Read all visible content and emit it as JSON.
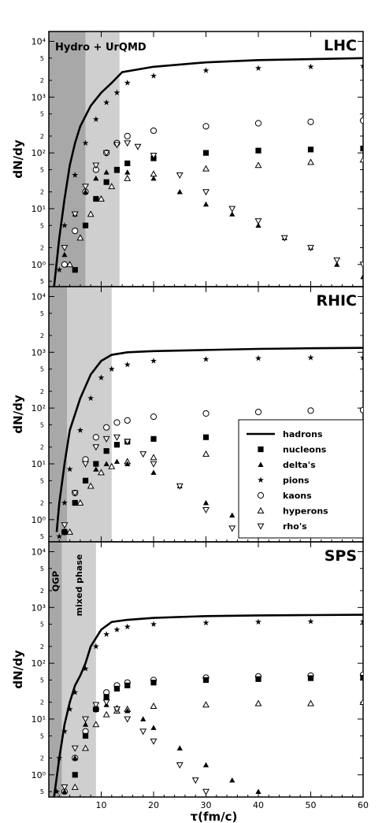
{
  "chart_data": {
    "type": "scatter",
    "x_label": "τ(fm/c)",
    "y_label": "dN/dy",
    "x_ticks": [
      "10",
      "20",
      "30",
      "40",
      "50",
      "60"
    ],
    "y_ticks": [
      "10⁰",
      "10¹",
      "10²",
      "10³",
      "10⁴"
    ],
    "y_minor_ticks": [
      "5",
      "2",
      "5",
      "2",
      "5",
      "2",
      "5",
      "2",
      "5"
    ],
    "xlim": [
      0,
      60
    ],
    "ylim": [
      0.4,
      15000
    ],
    "y_scale": "log",
    "legend": {
      "placement": "inside RHIC panel, right",
      "entries": [
        {
          "name": "hadrons",
          "marker": "line"
        },
        {
          "name": "nucleons",
          "marker": "square"
        },
        {
          "name": "delta's",
          "marker": "triangle"
        },
        {
          "name": "pions",
          "marker": "star"
        },
        {
          "name": "kaons",
          "marker": "circle-open"
        },
        {
          "name": "hyperons",
          "marker": "triangle-open"
        },
        {
          "name": "rho's",
          "marker": "triangle-down-open"
        }
      ]
    },
    "panels": [
      {
        "title": "LHC",
        "dark_shade_to": 7,
        "light_shade_to": 13.5,
        "shade_label": "Hydro + UrQMD",
        "series": {
          "hadrons": [
            [
              1,
              0.4
            ],
            [
              2,
              3
            ],
            [
              3,
              15
            ],
            [
              4,
              60
            ],
            [
              5,
              150
            ],
            [
              6,
              300
            ],
            [
              8,
              700
            ],
            [
              10,
              1200
            ],
            [
              12,
              1800
            ],
            [
              14,
              2800
            ],
            [
              20,
              3500
            ],
            [
              30,
              4200
            ],
            [
              40,
              4600
            ],
            [
              50,
              4800
            ],
            [
              60,
              5000
            ]
          ],
          "pions": [
            [
              2,
              0.8
            ],
            [
              3,
              5
            ],
            [
              5,
              40
            ],
            [
              7,
              150
            ],
            [
              9,
              400
            ],
            [
              11,
              800
            ],
            [
              13,
              1200
            ],
            [
              15,
              1800
            ],
            [
              20,
              2400
            ],
            [
              30,
              3000
            ],
            [
              40,
              3300
            ],
            [
              50,
              3500
            ],
            [
              60,
              3600
            ]
          ],
          "kaons": [
            [
              3,
              1
            ],
            [
              5,
              4
            ],
            [
              7,
              20
            ],
            [
              9,
              50
            ],
            [
              11,
              100
            ],
            [
              13,
              150
            ],
            [
              15,
              200
            ],
            [
              20,
              250
            ],
            [
              30,
              300
            ],
            [
              40,
              340
            ],
            [
              50,
              360
            ],
            [
              60,
              380
            ]
          ],
          "nucleons": [
            [
              5,
              0.8
            ],
            [
              7,
              5
            ],
            [
              9,
              15
            ],
            [
              11,
              30
            ],
            [
              13,
              50
            ],
            [
              15,
              65
            ],
            [
              20,
              80
            ],
            [
              30,
              100
            ],
            [
              40,
              110
            ],
            [
              50,
              115
            ],
            [
              60,
              120
            ]
          ],
          "hyperons": [
            [
              4,
              1
            ],
            [
              6,
              3
            ],
            [
              8,
              8
            ],
            [
              10,
              15
            ],
            [
              12,
              25
            ],
            [
              15,
              35
            ],
            [
              20,
              42
            ],
            [
              30,
              52
            ],
            [
              40,
              60
            ],
            [
              50,
              68
            ],
            [
              60,
              75
            ]
          ],
          "deltas": [
            [
              3,
              1.5
            ],
            [
              5,
              8
            ],
            [
              7,
              20
            ],
            [
              9,
              35
            ],
            [
              11,
              45
            ],
            [
              13,
              48
            ],
            [
              15,
              45
            ],
            [
              20,
              35
            ],
            [
              25,
              20
            ],
            [
              30,
              12
            ],
            [
              35,
              8
            ],
            [
              40,
              5
            ],
            [
              45,
              3
            ],
            [
              50,
              2
            ],
            [
              55,
              1
            ],
            [
              60,
              0.6
            ]
          ],
          "rhos": [
            [
              3,
              2
            ],
            [
              5,
              8
            ],
            [
              7,
              25
            ],
            [
              9,
              60
            ],
            [
              11,
              100
            ],
            [
              13,
              140
            ],
            [
              15,
              150
            ],
            [
              17,
              130
            ],
            [
              20,
              90
            ],
            [
              25,
              40
            ],
            [
              30,
              20
            ],
            [
              35,
              10
            ],
            [
              40,
              6
            ],
            [
              45,
              3
            ],
            [
              50,
              2
            ],
            [
              55,
              1.2
            ],
            [
              60,
              1
            ]
          ]
        }
      },
      {
        "title": "RHIC",
        "dark_shade_to": 3.5,
        "light_shade_to": 12,
        "series": {
          "hadrons": [
            [
              1.5,
              0.6
            ],
            [
              2,
              2
            ],
            [
              3,
              10
            ],
            [
              4,
              40
            ],
            [
              6,
              150
            ],
            [
              8,
              400
            ],
            [
              10,
              700
            ],
            [
              12,
              900
            ],
            [
              15,
              1000
            ],
            [
              20,
              1050
            ],
            [
              30,
              1100
            ],
            [
              40,
              1150
            ],
            [
              50,
              1180
            ],
            [
              60,
              1200
            ]
          ],
          "pions": [
            [
              2,
              0.5
            ],
            [
              3,
              2
            ],
            [
              4,
              8
            ],
            [
              6,
              40
            ],
            [
              8,
              150
            ],
            [
              10,
              350
            ],
            [
              12,
              500
            ],
            [
              15,
              600
            ],
            [
              20,
              700
            ],
            [
              30,
              750
            ],
            [
              40,
              780
            ],
            [
              50,
              800
            ],
            [
              60,
              800
            ]
          ],
          "kaons": [
            [
              3,
              0.6
            ],
            [
              5,
              3
            ],
            [
              7,
              12
            ],
            [
              9,
              30
            ],
            [
              11,
              45
            ],
            [
              13,
              55
            ],
            [
              15,
              60
            ],
            [
              20,
              70
            ],
            [
              30,
              80
            ],
            [
              40,
              85
            ],
            [
              50,
              90
            ],
            [
              60,
              92
            ]
          ],
          "nucleons": [
            [
              3,
              0.6
            ],
            [
              5,
              2
            ],
            [
              7,
              5
            ],
            [
              9,
              10
            ],
            [
              11,
              17
            ],
            [
              13,
              22
            ],
            [
              15,
              25
            ],
            [
              20,
              28
            ],
            [
              30,
              30
            ],
            [
              40,
              32
            ],
            [
              50,
              33
            ],
            [
              60,
              34
            ]
          ],
          "hyperons": [
            [
              4,
              0.6
            ],
            [
              6,
              2
            ],
            [
              8,
              4
            ],
            [
              10,
              7
            ],
            [
              12,
              9
            ],
            [
              15,
              11
            ],
            [
              20,
              13
            ],
            [
              30,
              15
            ],
            [
              40,
              16
            ],
            [
              50,
              17
            ],
            [
              60,
              18
            ]
          ],
          "deltas": [
            [
              3,
              0.6
            ],
            [
              5,
              2
            ],
            [
              7,
              5
            ],
            [
              9,
              8
            ],
            [
              11,
              10
            ],
            [
              13,
              11
            ],
            [
              15,
              10
            ],
            [
              20,
              7
            ],
            [
              25,
              4
            ],
            [
              30,
              2
            ],
            [
              35,
              1.2
            ],
            [
              40,
              0.7
            ]
          ],
          "rhos": [
            [
              3,
              0.8
            ],
            [
              5,
              3
            ],
            [
              7,
              10
            ],
            [
              9,
              20
            ],
            [
              11,
              28
            ],
            [
              13,
              30
            ],
            [
              15,
              25
            ],
            [
              18,
              15
            ],
            [
              20,
              10
            ],
            [
              25,
              4
            ],
            [
              30,
              1.5
            ],
            [
              35,
              0.7
            ]
          ]
        }
      },
      {
        "title": "SPS",
        "dark_shade_to": 2.5,
        "light_shade_to": 9,
        "shade_label": "QGP",
        "phase_label": "mixed phase",
        "series": {
          "hadrons": [
            [
              1,
              0.4
            ],
            [
              2,
              2
            ],
            [
              3,
              8
            ],
            [
              4,
              20
            ],
            [
              5,
              40
            ],
            [
              6,
              60
            ],
            [
              7,
              100
            ],
            [
              8,
              200
            ],
            [
              10,
              400
            ],
            [
              12,
              550
            ],
            [
              15,
              600
            ],
            [
              20,
              650
            ],
            [
              30,
              700
            ],
            [
              40,
              720
            ],
            [
              50,
              730
            ],
            [
              60,
              740
            ]
          ],
          "pions": [
            [
              1.5,
              0.5
            ],
            [
              2,
              2
            ],
            [
              3,
              6
            ],
            [
              4,
              15
            ],
            [
              5,
              30
            ],
            [
              7,
              80
            ],
            [
              9,
              200
            ],
            [
              11,
              330
            ],
            [
              13,
              400
            ],
            [
              15,
              450
            ],
            [
              20,
              500
            ],
            [
              30,
              530
            ],
            [
              40,
              550
            ],
            [
              50,
              560
            ],
            [
              60,
              560
            ]
          ],
          "kaons": [
            [
              3,
              0.5
            ],
            [
              5,
              2
            ],
            [
              7,
              6
            ],
            [
              9,
              15
            ],
            [
              11,
              30
            ],
            [
              13,
              40
            ],
            [
              15,
              45
            ],
            [
              20,
              50
            ],
            [
              30,
              55
            ],
            [
              40,
              58
            ],
            [
              50,
              60
            ],
            [
              60,
              62
            ]
          ],
          "nucleons": [
            [
              5,
              1
            ],
            [
              7,
              5
            ],
            [
              9,
              15
            ],
            [
              11,
              25
            ],
            [
              13,
              35
            ],
            [
              15,
              40
            ],
            [
              20,
              45
            ],
            [
              30,
              50
            ],
            [
              40,
              52
            ],
            [
              50,
              54
            ],
            [
              60,
              55
            ]
          ],
          "hyperons": [
            [
              5,
              0.6
            ],
            [
              7,
              3
            ],
            [
              9,
              8
            ],
            [
              11,
              12
            ],
            [
              13,
              14
            ],
            [
              15,
              15
            ],
            [
              20,
              17
            ],
            [
              30,
              18
            ],
            [
              40,
              19
            ],
            [
              50,
              19
            ],
            [
              60,
              20
            ]
          ],
          "deltas": [
            [
              3,
              0.5
            ],
            [
              5,
              2
            ],
            [
              7,
              8
            ],
            [
              9,
              15
            ],
            [
              11,
              18
            ],
            [
              13,
              16
            ],
            [
              15,
              14
            ],
            [
              18,
              10
            ],
            [
              20,
              7
            ],
            [
              25,
              3
            ],
            [
              30,
              1.5
            ],
            [
              35,
              0.8
            ],
            [
              40,
              0.5
            ]
          ],
          "rhos": [
            [
              3,
              0.6
            ],
            [
              5,
              3
            ],
            [
              7,
              10
            ],
            [
              9,
              18
            ],
            [
              11,
              20
            ],
            [
              13,
              15
            ],
            [
              15,
              10
            ],
            [
              18,
              6
            ],
            [
              20,
              4
            ],
            [
              25,
              1.5
            ],
            [
              28,
              0.8
            ],
            [
              30,
              0.5
            ]
          ]
        }
      }
    ]
  }
}
